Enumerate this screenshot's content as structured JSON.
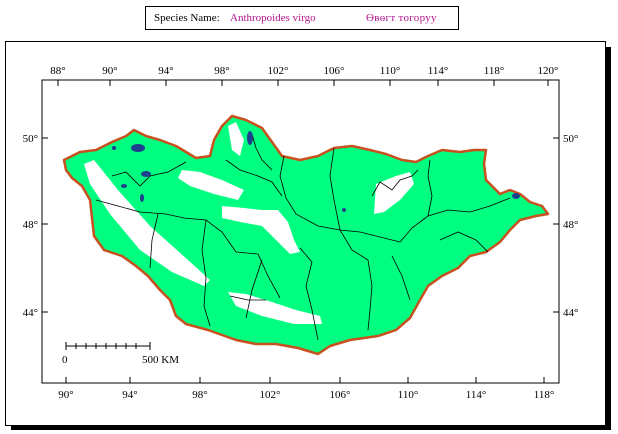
{
  "header": {
    "species_label": "Species Name:",
    "species_name": "Anthropoides virgo",
    "local_name": "Өвөгт тогоруу"
  },
  "map": {
    "top_longitudes": [
      "88°",
      "90°",
      "94°",
      "98°",
      "102°",
      "106°",
      "110°",
      "114°",
      "118°",
      "120°"
    ],
    "bottom_longitudes": [
      "90°",
      "94°",
      "98°",
      "102°",
      "106°",
      "110°",
      "114°",
      "118°"
    ],
    "left_latitudes": [
      "50°",
      "48°",
      "44°"
    ],
    "right_latitudes": [
      "50°",
      "48°",
      "44°"
    ],
    "scale_start": "0",
    "scale_end": "500 KM",
    "colors": {
      "range_fill": "#00ff80",
      "border": "#c8501e",
      "lakes": "#1f3f8f",
      "gaps": "#ffffff"
    }
  }
}
